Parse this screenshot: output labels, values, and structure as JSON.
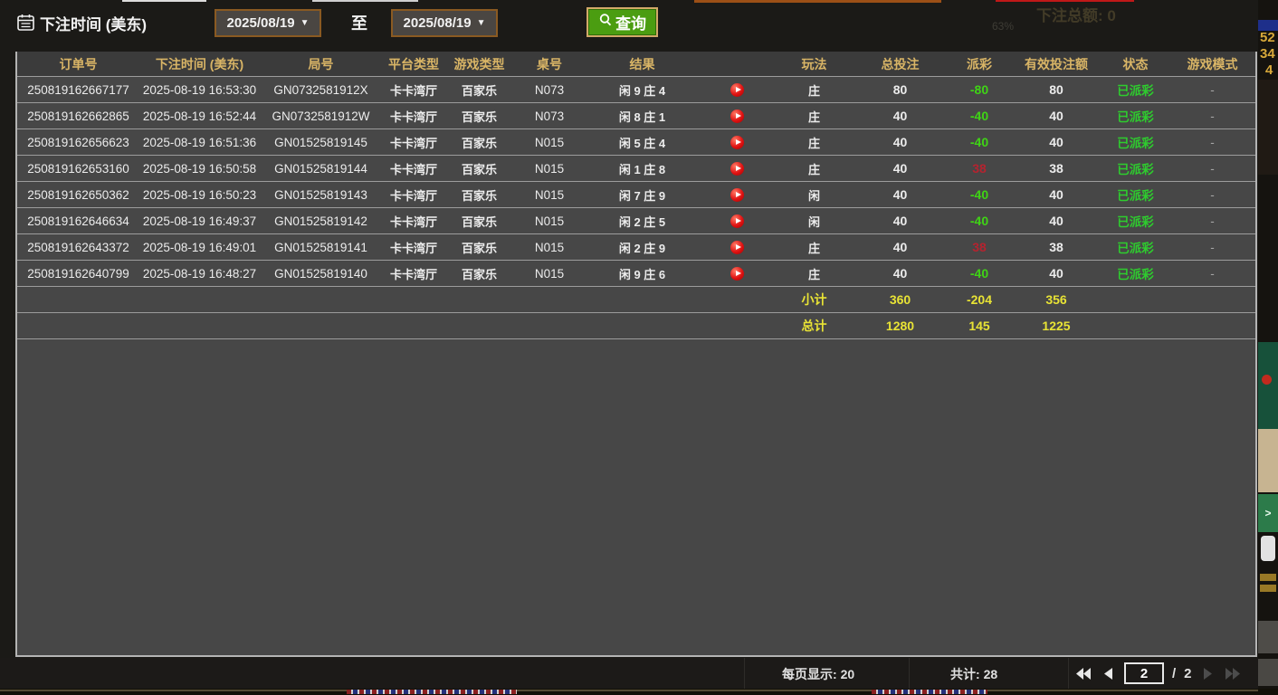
{
  "filter": {
    "field_label": "下注时间 (美东)",
    "date_from": "2025/08/19",
    "date_to": "2025/08/19",
    "range_separator": "至",
    "search_button": "查询"
  },
  "table": {
    "columns": [
      "订单号",
      "下注时间 (美东)",
      "局号",
      "平台类型",
      "游戏类型",
      "桌号",
      "结果",
      "玩法",
      "总投注",
      "派彩",
      "有效投注额",
      "状态",
      "游戏模式"
    ],
    "rows": [
      {
        "order_id": "250819162667177",
        "bet_time": "2025-08-19 16:53:30",
        "round_id": "GN0732581912X",
        "platform": "卡卡湾厅",
        "game_type": "百家乐",
        "table_no": "N073",
        "result": "闲 9 庄 4",
        "play": "庄",
        "total_bet": "80",
        "payout": "-80",
        "payout_positive": false,
        "valid_bet": "80",
        "status": "已派彩",
        "game_mode": "-"
      },
      {
        "order_id": "250819162662865",
        "bet_time": "2025-08-19 16:52:44",
        "round_id": "GN0732581912W",
        "platform": "卡卡湾厅",
        "game_type": "百家乐",
        "table_no": "N073",
        "result": "闲 8 庄 1",
        "play": "庄",
        "total_bet": "40",
        "payout": "-40",
        "payout_positive": false,
        "valid_bet": "40",
        "status": "已派彩",
        "game_mode": "-"
      },
      {
        "order_id": "250819162656623",
        "bet_time": "2025-08-19 16:51:36",
        "round_id": "GN01525819145",
        "platform": "卡卡湾厅",
        "game_type": "百家乐",
        "table_no": "N015",
        "result": "闲 5 庄 4",
        "play": "庄",
        "total_bet": "40",
        "payout": "-40",
        "payout_positive": false,
        "valid_bet": "40",
        "status": "已派彩",
        "game_mode": "-"
      },
      {
        "order_id": "250819162653160",
        "bet_time": "2025-08-19 16:50:58",
        "round_id": "GN01525819144",
        "platform": "卡卡湾厅",
        "game_type": "百家乐",
        "table_no": "N015",
        "result": "闲 1 庄 8",
        "play": "庄",
        "total_bet": "40",
        "payout": "38",
        "payout_positive": true,
        "valid_bet": "38",
        "status": "已派彩",
        "game_mode": "-"
      },
      {
        "order_id": "250819162650362",
        "bet_time": "2025-08-19 16:50:23",
        "round_id": "GN01525819143",
        "platform": "卡卡湾厅",
        "game_type": "百家乐",
        "table_no": "N015",
        "result": "闲 7 庄 9",
        "play": "闲",
        "total_bet": "40",
        "payout": "-40",
        "payout_positive": false,
        "valid_bet": "40",
        "status": "已派彩",
        "game_mode": "-"
      },
      {
        "order_id": "250819162646634",
        "bet_time": "2025-08-19 16:49:37",
        "round_id": "GN01525819142",
        "platform": "卡卡湾厅",
        "game_type": "百家乐",
        "table_no": "N015",
        "result": "闲 2 庄 5",
        "play": "闲",
        "total_bet": "40",
        "payout": "-40",
        "payout_positive": false,
        "valid_bet": "40",
        "status": "已派彩",
        "game_mode": "-"
      },
      {
        "order_id": "250819162643372",
        "bet_time": "2025-08-19 16:49:01",
        "round_id": "GN01525819141",
        "platform": "卡卡湾厅",
        "game_type": "百家乐",
        "table_no": "N015",
        "result": "闲 2 庄 9",
        "play": "庄",
        "total_bet": "40",
        "payout": "38",
        "payout_positive": true,
        "valid_bet": "38",
        "status": "已派彩",
        "game_mode": "-"
      },
      {
        "order_id": "250819162640799",
        "bet_time": "2025-08-19 16:48:27",
        "round_id": "GN01525819140",
        "platform": "卡卡湾厅",
        "game_type": "百家乐",
        "table_no": "N015",
        "result": "闲 9 庄 6",
        "play": "庄",
        "total_bet": "40",
        "payout": "-40",
        "payout_positive": false,
        "valid_bet": "40",
        "status": "已派彩",
        "game_mode": "-"
      }
    ],
    "subtotal": {
      "label": "小计",
      "total_bet": "360",
      "payout": "-204",
      "valid_bet": "356"
    },
    "grand_total": {
      "label": "总计",
      "total_bet": "1280",
      "payout": "145",
      "valid_bet": "1225"
    }
  },
  "pagination": {
    "per_page_label": "每页显示:",
    "per_page_value": "20",
    "total_label": "共计:",
    "total_value": "28",
    "current_page": "2",
    "separator": "/",
    "total_pages": "2"
  },
  "edge_fragments": {
    "bleed_total_text": "下注总额: 0",
    "bleed_percent": "63%",
    "edge_numbers": [
      "52",
      "34",
      "4"
    ],
    "green_button_label": ">"
  },
  "colors": {
    "header_text_gold": "#d9b566",
    "header_bg": "#3b3b3b",
    "row_bg": "#474747",
    "payout_negative_green": "#3fd415",
    "payout_positive_red": "#b5232f",
    "status_paid_green": "#2ecc2e",
    "totals_yellow": "#e8e335",
    "search_button_green": "#4b9d11",
    "date_border_brown": "#8a5a22"
  }
}
